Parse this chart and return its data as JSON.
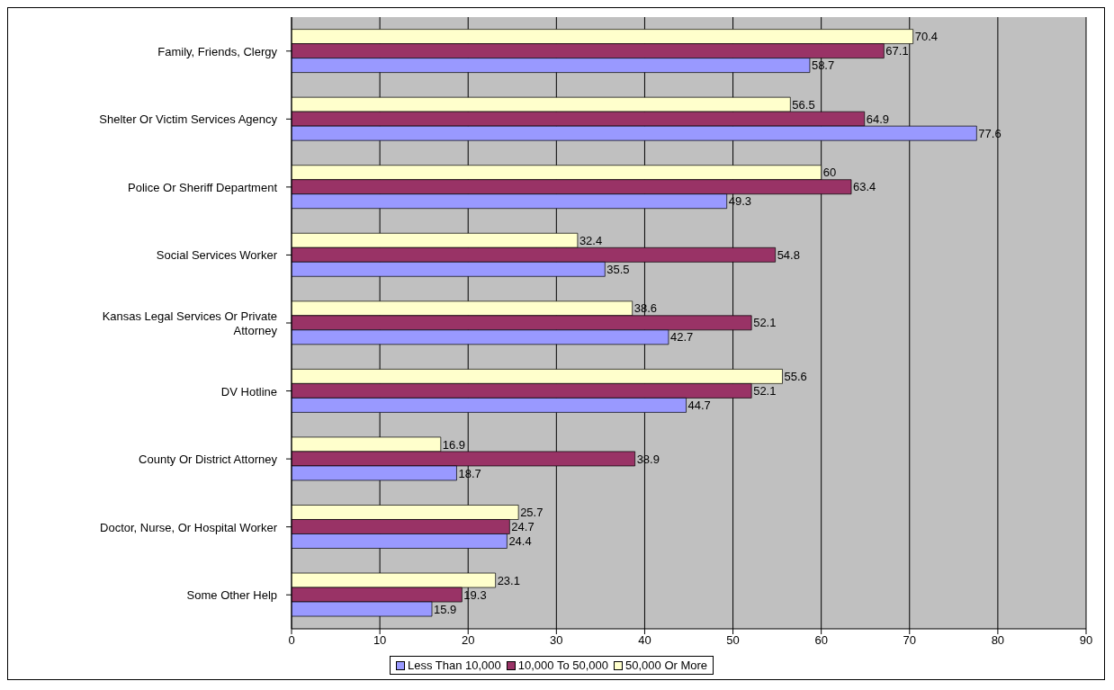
{
  "chart_data": {
    "type": "bar",
    "orientation": "horizontal",
    "categories": [
      "Family, Friends, Clergy",
      "Shelter Or Victim Services Agency",
      "Police Or Sheriff Department",
      "Social Services Worker",
      "Kansas Legal Services Or Private Attorney",
      "DV Hotline",
      "County Or District Attorney",
      "Doctor, Nurse, Or Hospital Worker",
      "Some Other Help"
    ],
    "series": [
      {
        "name": "Less Than 10,000",
        "color": "#9999ff",
        "values": [
          58.7,
          77.6,
          49.3,
          35.5,
          42.7,
          44.7,
          18.7,
          24.4,
          15.9
        ]
      },
      {
        "name": "10,000 To 50,000",
        "color": "#993366",
        "values": [
          67.1,
          64.9,
          63.4,
          54.8,
          52.1,
          52.1,
          38.9,
          24.7,
          19.3
        ]
      },
      {
        "name": "50,000 Or More",
        "color": "#ffffcc",
        "values": [
          70.4,
          56.5,
          60,
          32.4,
          38.6,
          55.6,
          16.9,
          25.7,
          23.1
        ]
      }
    ],
    "xlim": [
      0,
      90
    ],
    "xticks": [
      0,
      10,
      20,
      30,
      40,
      50,
      60,
      70,
      80,
      90
    ],
    "grid": "x",
    "legend": "bottom",
    "data_labels": true
  }
}
